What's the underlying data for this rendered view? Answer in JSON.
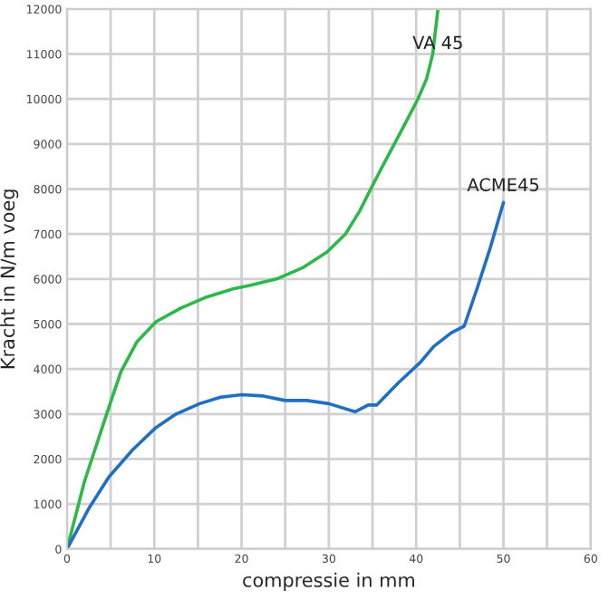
{
  "chart_data": {
    "type": "line",
    "xlabel": "compressie in mm",
    "ylabel": "Kracht in N/m voeg",
    "xlim": [
      0,
      60
    ],
    "xticks": [
      0,
      10,
      20,
      30,
      40,
      50,
      60
    ],
    "ylim": [
      0,
      12000
    ],
    "yticks": [
      0,
      1000,
      2000,
      3000,
      4000,
      5000,
      6000,
      7000,
      8000,
      9000,
      10000,
      11000,
      12000
    ],
    "grid": true,
    "legend": false,
    "series": [
      {
        "name": "VA 45",
        "color": "#2db84a",
        "x": [
          0,
          2,
          4.8,
          6.2,
          8,
          10.2,
          13,
          16,
          19,
          21,
          24,
          27,
          29.8,
          31.9,
          33.5,
          34.8,
          36,
          37.5,
          39,
          40.2,
          41.2,
          41.9,
          42.2,
          42.5
        ],
        "values": [
          0,
          1500,
          3150,
          3950,
          4600,
          5050,
          5350,
          5600,
          5780,
          5860,
          6000,
          6250,
          6600,
          7000,
          7500,
          8000,
          8450,
          9000,
          9550,
          10000,
          10450,
          11000,
          11500,
          12000
        ]
      },
      {
        "name": "ACME45",
        "color": "#1f6fc4",
        "x": [
          0,
          2.5,
          4.8,
          7.5,
          10.2,
          12.5,
          15.2,
          17.5,
          20,
          22.5,
          25,
          27.5,
          30,
          33,
          34.5,
          35.5,
          38,
          40.5,
          42,
          44,
          45.5,
          47,
          48.5,
          50
        ],
        "values": [
          0,
          900,
          1600,
          2200,
          2700,
          3000,
          3230,
          3370,
          3430,
          3400,
          3300,
          3300,
          3230,
          3050,
          3200,
          3200,
          3700,
          4150,
          4500,
          4800,
          4950,
          5800,
          6700,
          7700
        ]
      }
    ]
  }
}
